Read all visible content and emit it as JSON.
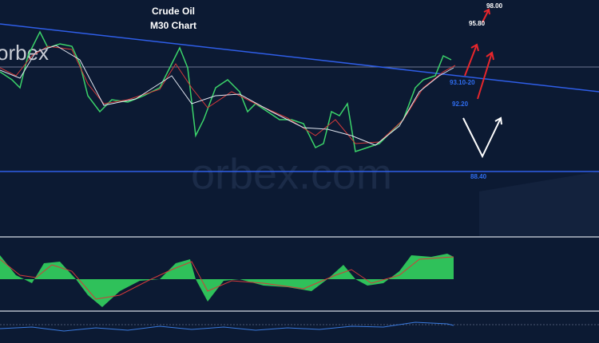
{
  "title": "Crude Oil",
  "subtitle": "M30 Chart",
  "logo": "orbex",
  "watermark": "orbex.com",
  "levels": [
    "98.00",
    "95.80",
    "93.10-20",
    "92.20",
    "88.40"
  ]
}
